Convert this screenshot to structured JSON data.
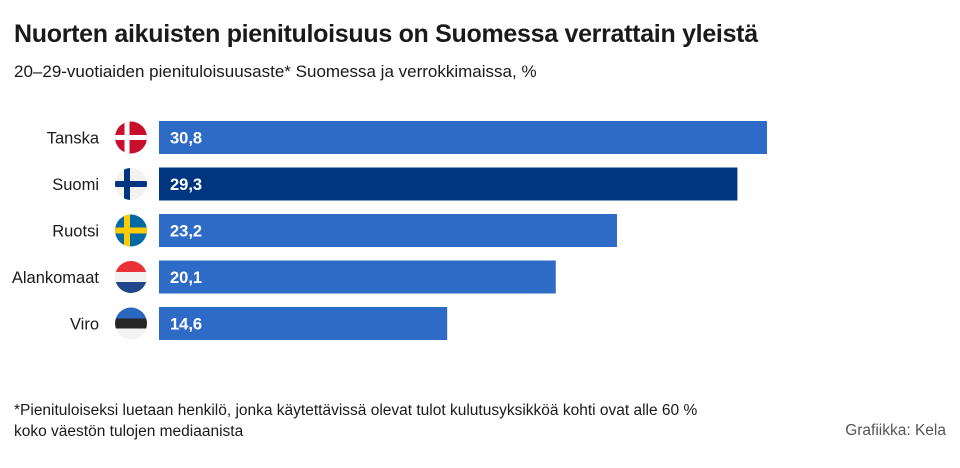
{
  "title": "Nuorten aikuisten pienituloisuus on Suomessa verrattain yleistä",
  "subtitle": "20–29-vuotiaiden pienituloisuusaste* Suomessa ja verrokkimaissa, %",
  "footnote_line1": "*Pienituloiseksi luetaan henkilö, jonka käytettävissä olevat tulot kulutusyksikköä kohti ovat alle 60 %",
  "footnote_line2": "koko väestön tulojen mediaanista",
  "source": "Grafiikka: Kela",
  "colors": {
    "bar": "#2e6bc6",
    "highlight": "#003580",
    "label": "#ffffff"
  },
  "chart_data": {
    "type": "bar",
    "orientation": "horizontal",
    "categories": [
      "Tanska",
      "Suomi",
      "Ruotsi",
      "Alankomaat",
      "Viro"
    ],
    "values": [
      30.8,
      29.3,
      23.2,
      20.1,
      14.6
    ],
    "value_labels": [
      "30,8",
      "29,3",
      "23,2",
      "20,1",
      "14,6"
    ],
    "flags": [
      "denmark-flag-icon",
      "finland-flag-icon",
      "sweden-flag-icon",
      "netherlands-flag-icon",
      "estonia-flag-icon"
    ],
    "highlight": "Suomi",
    "xlim": [
      0,
      30.8
    ],
    "grid": false,
    "legend": "none"
  }
}
